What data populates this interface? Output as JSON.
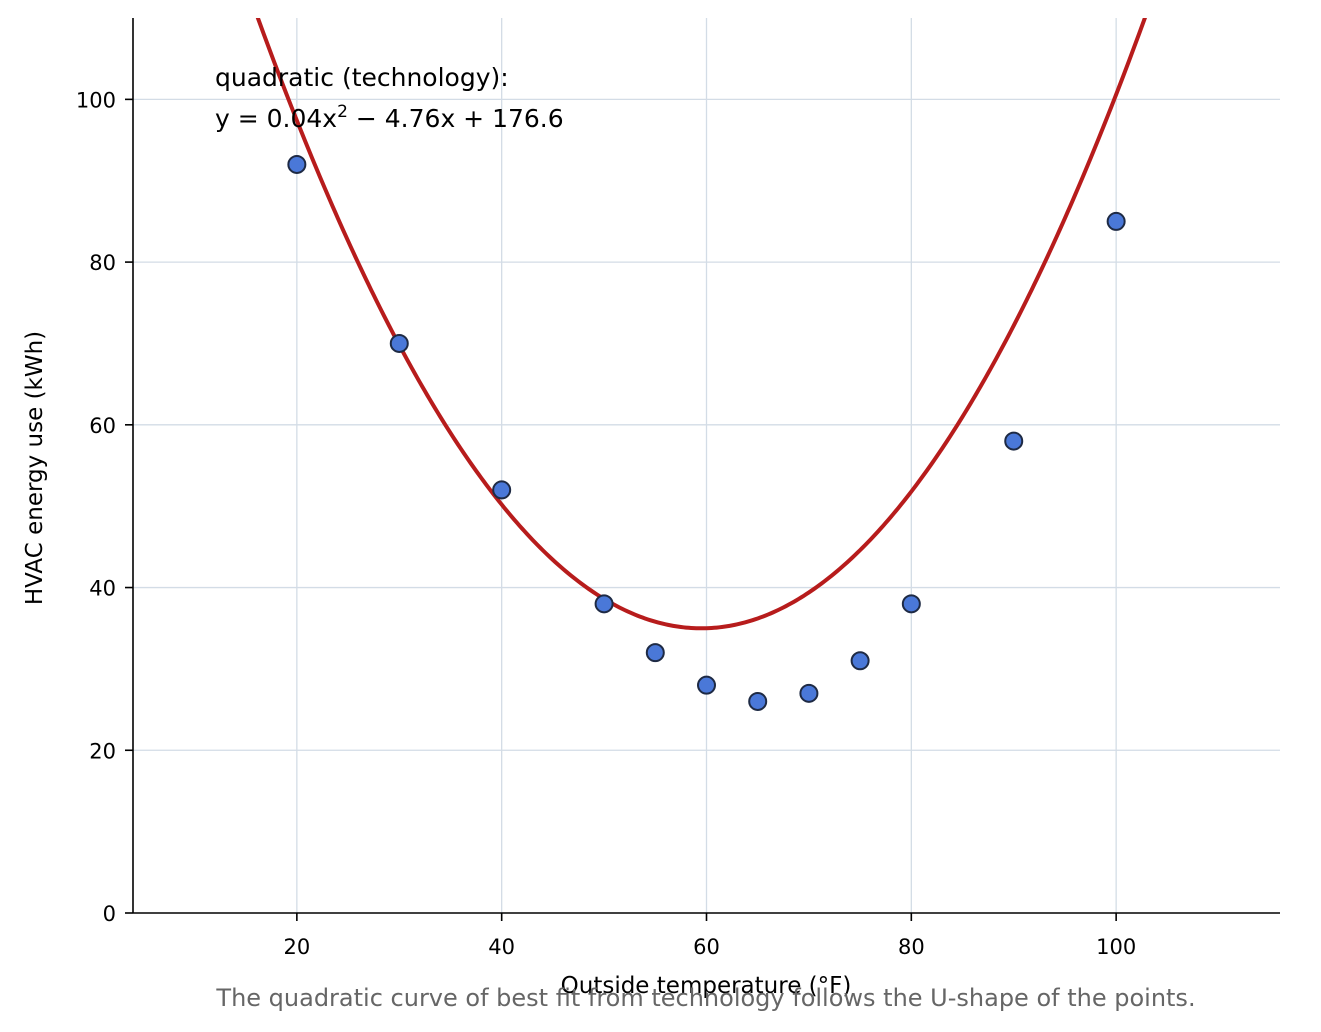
{
  "chart_data": {
    "type": "scatter",
    "xlabel": "Outside temperature (°F)",
    "ylabel": "HVAC energy use (kWh)",
    "xlim": [
      4,
      116
    ],
    "ylim": [
      0,
      110
    ],
    "x_ticks": [
      20,
      40,
      60,
      80,
      100
    ],
    "y_ticks": [
      0,
      20,
      40,
      60,
      80,
      100
    ],
    "grid": true,
    "points": {
      "x": [
        20,
        30,
        40,
        50,
        55,
        60,
        65,
        70,
        75,
        80,
        90,
        100
      ],
      "y": [
        92,
        70,
        52,
        38,
        32,
        28,
        26,
        27,
        31,
        38,
        58,
        85
      ]
    },
    "fit": {
      "type": "quadratic",
      "a": 0.04,
      "b": -4.76,
      "c": 176.6
    },
    "annotation": {
      "line1": "quadratic (technology):",
      "line2_prefix": "y = 0.04x",
      "line2_sup": "2",
      "line2_suffix": " − 4.76x + 176.6"
    },
    "caption": "The quadratic curve of best fit from technology follows the U-shape of the points.",
    "colors": {
      "points_fill": "#4a78d8",
      "points_edge": "#1e2a44",
      "fit_line": "#b71c1c",
      "grid": "#d3dce6",
      "axis": "#000000",
      "caption": "#666666"
    }
  }
}
